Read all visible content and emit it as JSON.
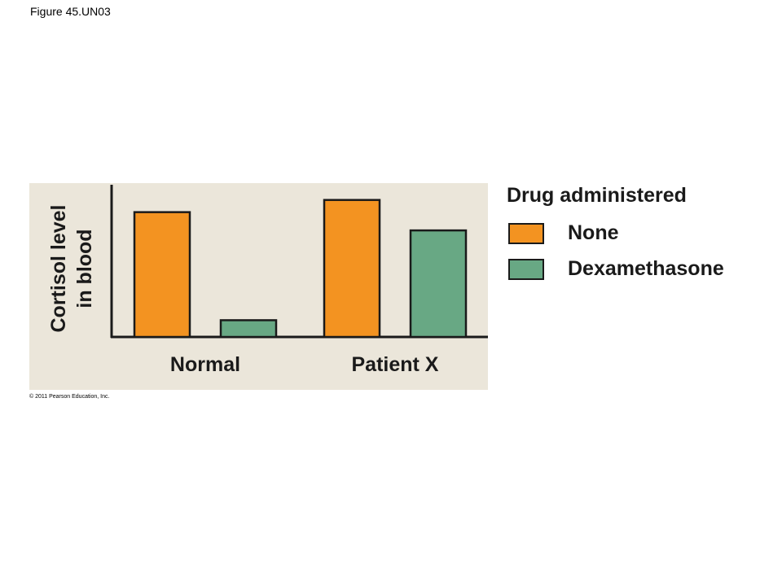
{
  "figure_label": "Figure 45.UN03",
  "copyright": "© 2011 Pearson Education, Inc.",
  "colors": {
    "panel_bg": "#ebe6da",
    "orange": "#f39321",
    "green": "#68a884",
    "outline": "#1a1a1a"
  },
  "legend": {
    "title": "Drug administered",
    "items": [
      {
        "label": "None",
        "color": "#f39321"
      },
      {
        "label": "Dexamethasone",
        "color": "#68a884"
      }
    ]
  },
  "chart_data": {
    "type": "bar",
    "title": "",
    "xlabel": "",
    "ylabel_lines": [
      "Cortisol level",
      "in blood"
    ],
    "categories": [
      "Normal",
      "Patient X"
    ],
    "series": [
      {
        "name": "None",
        "color": "#f39321",
        "values": [
          82,
          90
        ]
      },
      {
        "name": "Dexamethasone",
        "color": "#68a884",
        "values": [
          11,
          70
        ]
      }
    ],
    "ylim": [
      0,
      100
    ],
    "y_ticks": false,
    "grid": false,
    "legend_position": "right"
  }
}
